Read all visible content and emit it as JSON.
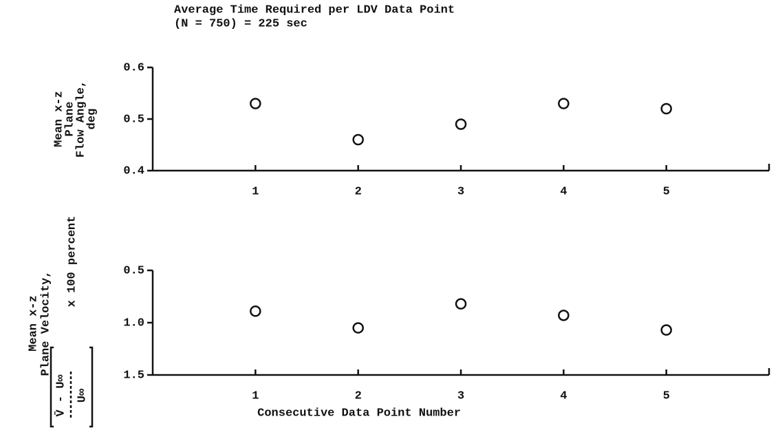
{
  "chart_data": [
    {
      "type": "scatter",
      "title": [
        "Average Time Required per LDV Data Point",
        "(N = 750) = 225 sec"
      ],
      "ylabel": [
        "Mean x-z",
        "Plane",
        "Flow Angle,",
        "deg"
      ],
      "x": [
        1,
        2,
        3,
        4,
        5
      ],
      "values": [
        0.53,
        0.46,
        0.49,
        0.53,
        0.52
      ],
      "xlim": [
        0,
        6
      ],
      "xticks": [
        1,
        2,
        3,
        4,
        5
      ],
      "ylim": [
        0.4,
        0.6
      ],
      "yticks": [
        0.4,
        0.5,
        0.6
      ],
      "color": "#111111"
    },
    {
      "type": "scatter",
      "ylabel": [
        "Mean x-z",
        "Plane Velocity,"
      ],
      "ylabel_formula": {
        "numerator": "V̄ - U∞",
        "denominator": "U∞",
        "factor": "x 100 percent"
      },
      "xlabel": "Consecutive Data Point Number",
      "x": [
        1,
        2,
        3,
        4,
        5
      ],
      "values": [
        0.89,
        1.05,
        0.82,
        0.93,
        1.07
      ],
      "xlim": [
        0,
        6
      ],
      "xticks": [
        1,
        2,
        3,
        4,
        5
      ],
      "ylim": [
        1.5,
        0.5
      ],
      "yticks": [
        0.5,
        {
          "value": 1,
          "label": "1.0"
        },
        1.5
      ],
      "color": "#111111"
    }
  ]
}
